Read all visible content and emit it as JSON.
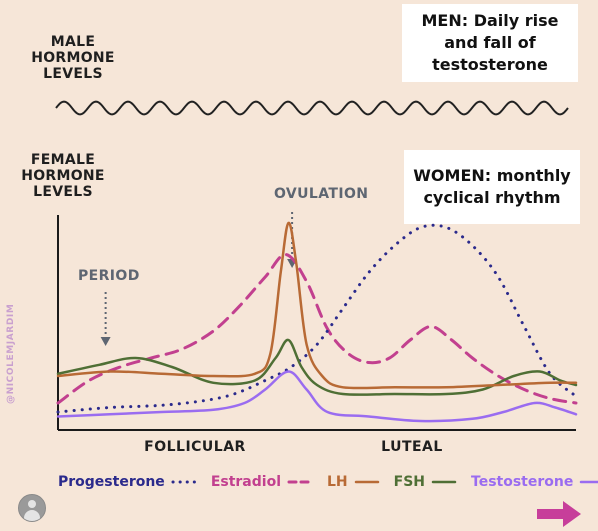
{
  "labels": {
    "male_hormone_levels": [
      "MALE",
      "HORMONE",
      "LEVELS"
    ],
    "female_hormone_levels": [
      "FEMALE",
      "HORMONE",
      "LEVELS"
    ],
    "men_box": [
      "MEN: Daily rise",
      "and fall of",
      "testosterone"
    ],
    "women_box": [
      "WOMEN: monthly",
      "cyclical rhythm"
    ],
    "ovulation": "OVULATION",
    "period": "PERIOD",
    "watermark": "@NICOLEMJARDIM"
  },
  "colors": {
    "background": "#f6e6d8",
    "progesterone": "#2b2a8c",
    "estradiol": "#c2408f",
    "lh": "#b86a35",
    "fsh": "#4f6f35",
    "testosterone": "#9a6cf0",
    "male_wave": "#222222",
    "axis": "#1a1a1a",
    "arrow": "#c73e9a"
  },
  "icons": {
    "avatar": "user-avatar-icon",
    "next": "right-arrow-icon"
  },
  "chart_data": {
    "type": "line",
    "title": "",
    "xlabel": "",
    "ylabel": "",
    "categories": [
      "FOLLICULAR",
      "LUTEAL"
    ],
    "xlim": [
      0,
      100
    ],
    "ylim": [
      0,
      100
    ],
    "grid": false,
    "legend": "bottom",
    "annotations": [
      {
        "text": "OVULATION",
        "x": 45
      },
      {
        "text": "PERIOD",
        "x": 9
      }
    ],
    "male_wave": {
      "name": "",
      "cycles": 16,
      "amplitude": 4,
      "baseline": 50
    },
    "series": [
      {
        "name": "Progesterone",
        "style": "dotted",
        "x": [
          0,
          10,
          20,
          28,
          34,
          40,
          45,
          50,
          55,
          60,
          65,
          70,
          75,
          80,
          85,
          90,
          95,
          100
        ],
        "y": [
          8,
          10,
          11,
          13,
          16,
          22,
          28,
          38,
          54,
          70,
          82,
          90,
          90,
          82,
          68,
          46,
          25,
          15
        ]
      },
      {
        "name": "Estradiol",
        "style": "dashed",
        "x": [
          0,
          6,
          12,
          18,
          24,
          30,
          35,
          40,
          44,
          48,
          52,
          56,
          60,
          64,
          68,
          72,
          76,
          80,
          85,
          90,
          95,
          100
        ],
        "y": [
          12,
          22,
          28,
          32,
          36,
          44,
          55,
          68,
          78,
          66,
          45,
          34,
          30,
          32,
          40,
          46,
          40,
          32,
          24,
          18,
          14,
          12
        ]
      },
      {
        "name": "LH",
        "style": "solid",
        "x": [
          0,
          10,
          20,
          30,
          38,
          41,
          43,
          44.5,
          46,
          48,
          51,
          55,
          65,
          75,
          85,
          95,
          100
        ],
        "y": [
          24,
          26,
          25,
          24,
          25,
          34,
          70,
          92,
          74,
          38,
          24,
          19,
          19,
          19,
          20,
          21,
          21
        ]
      },
      {
        "name": "FSH",
        "style": "solid",
        "x": [
          0,
          8,
          15,
          22,
          30,
          38,
          42,
          44.5,
          47,
          50,
          55,
          65,
          75,
          82,
          88,
          93,
          97,
          100
        ],
        "y": [
          25,
          29,
          32,
          28,
          21,
          22,
          32,
          40,
          28,
          20,
          16,
          16,
          16,
          18,
          24,
          26,
          22,
          20
        ]
      },
      {
        "name": "Testosterone",
        "style": "solid",
        "x": [
          0,
          10,
          20,
          30,
          36,
          40,
          44.5,
          48,
          52,
          60,
          70,
          80,
          86,
          92,
          96,
          100
        ],
        "y": [
          6,
          7,
          8,
          9,
          12,
          18,
          26,
          18,
          8,
          6,
          4,
          5,
          8,
          12,
          10,
          7
        ]
      }
    ]
  }
}
